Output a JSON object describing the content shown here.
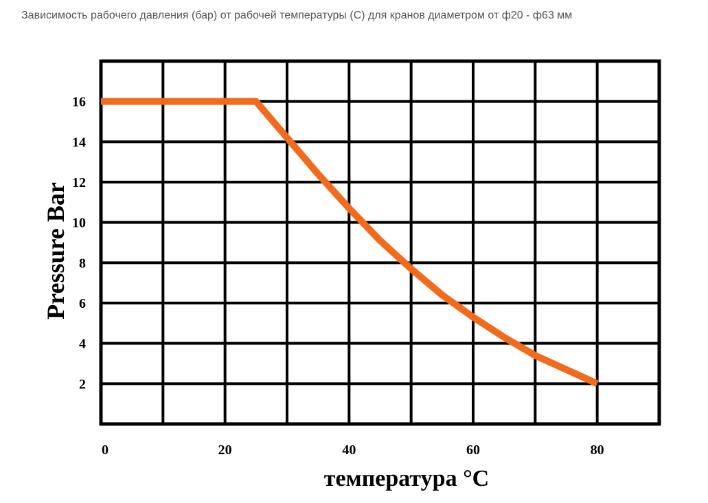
{
  "caption": "Зависимость рабочего давления (бар) от рабочей температуры (С) для кранов диаметром от ф20 - ф63 мм",
  "chart_data": {
    "type": "line",
    "title": "",
    "xlabel": "температура °С",
    "ylabel": "Pressure Bar",
    "xlim": [
      0,
      90
    ],
    "ylim": [
      0,
      18
    ],
    "xticks": [
      0,
      20,
      40,
      60,
      80
    ],
    "xtick_labels": [
      "0",
      "20",
      "40",
      "60",
      "80"
    ],
    "yticks": [
      2,
      4,
      6,
      8,
      10,
      12,
      14,
      16
    ],
    "ytick_labels": [
      "2",
      "4",
      "6",
      "8",
      "10",
      "12",
      "14",
      "16"
    ],
    "grid": true,
    "line_color": "#F26B1D",
    "series": [
      {
        "x": [
          0,
          25,
          30,
          35,
          40,
          45,
          50,
          55,
          60,
          65,
          70,
          75,
          80
        ],
        "y": [
          16,
          16,
          14.2,
          12.4,
          10.7,
          9.1,
          7.7,
          6.4,
          5.3,
          4.3,
          3.4,
          2.7,
          2.0
        ]
      }
    ]
  }
}
